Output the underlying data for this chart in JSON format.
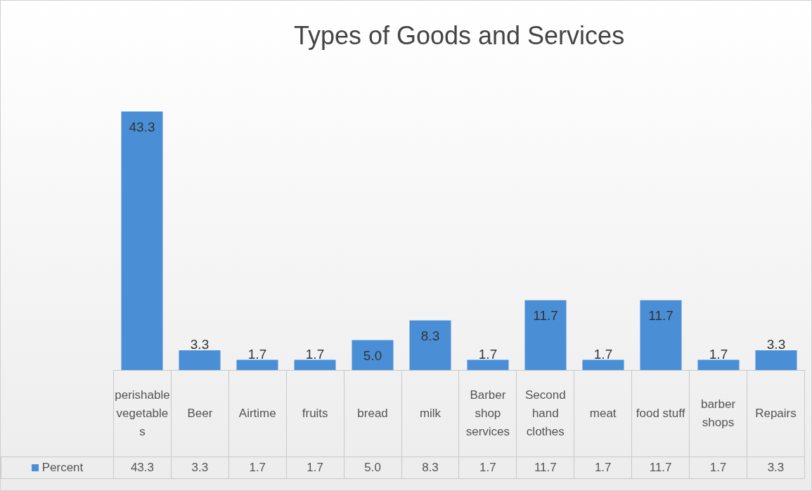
{
  "chart_data": {
    "type": "bar",
    "title": "Types of Goods and Services",
    "categories": [
      "perishable vegetables",
      "Beer",
      "Airtime",
      "fruits",
      "bread",
      "milk",
      "Barber shop services",
      "Second hand clothes",
      "meat",
      "food stuff",
      "barber shops",
      "Repairs"
    ],
    "series": [
      {
        "name": "Percent",
        "color": "#4a8fd6",
        "values": [
          43.3,
          3.3,
          1.7,
          1.7,
          5.0,
          8.3,
          1.7,
          11.7,
          1.7,
          11.7,
          1.7,
          3.3
        ],
        "value_labels": [
          "43.3",
          "3.3",
          "1.7",
          "1.7",
          "5.0",
          "8.3",
          "1.7",
          "11.7",
          "1.7",
          "11.7",
          "1.7",
          "3.3"
        ]
      }
    ],
    "legend": "bottom left"
  }
}
